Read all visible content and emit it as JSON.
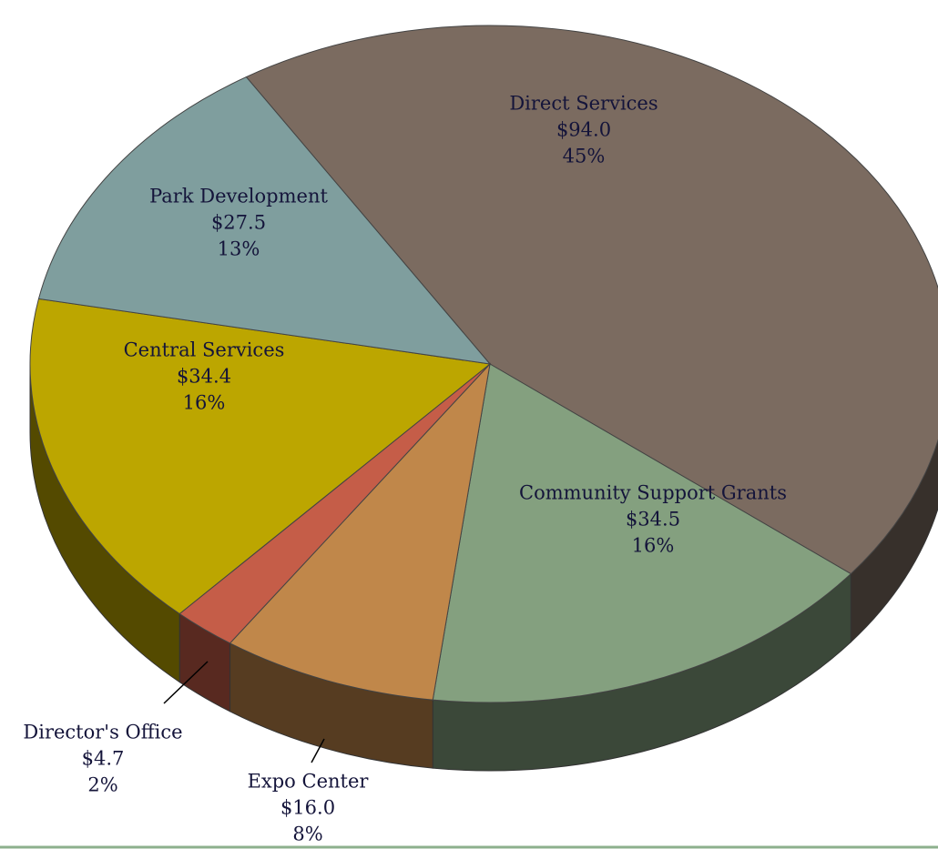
{
  "chart_data": {
    "type": "pie3d",
    "categories": [
      "Direct Services",
      "Community Support Grants",
      "Expo Center",
      "Director's Office",
      "Central Services",
      "Park Development"
    ],
    "values": [
      94.0,
      34.5,
      16.0,
      4.7,
      34.4,
      27.5
    ],
    "value_labels": [
      "$94.0",
      "$34.5",
      "$16.0",
      "$4.7",
      "$34.4",
      "$27.5"
    ],
    "percents": [
      45,
      16,
      8,
      2,
      16,
      13
    ],
    "percent_labels": [
      "45%",
      "16%",
      "8%",
      "2%",
      "16%",
      "13%"
    ],
    "colors": [
      "#7b6b60",
      "#84a07f",
      "#c0874a",
      "#c55d48",
      "#bca600",
      "#7f9e9e"
    ]
  }
}
